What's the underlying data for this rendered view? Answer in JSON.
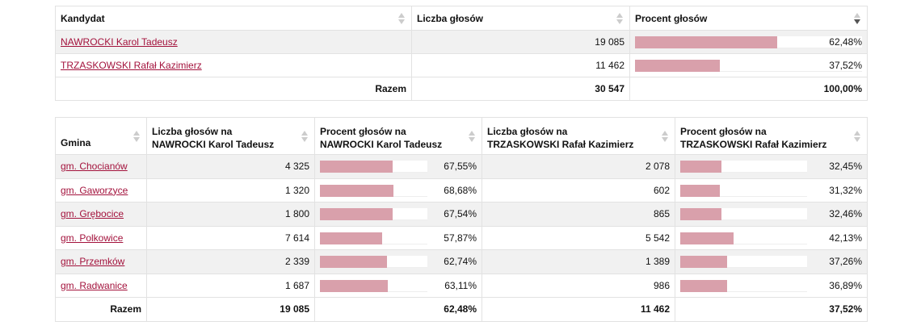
{
  "summary": {
    "headers": {
      "candidate": "Kandydat",
      "votes": "Liczba głosów",
      "percent": "Procent głosów"
    },
    "rows": [
      {
        "name": "NAWROCKI Karol Tadeusz",
        "votes": "19 085",
        "percent": "62,48%",
        "percent_value": 62.48
      },
      {
        "name": "TRZASKOWSKI Rafał Kazimierz",
        "votes": "11 462",
        "percent": "37,52%",
        "percent_value": 37.52
      }
    ],
    "total": {
      "label": "Razem",
      "votes": "30 547",
      "percent": "100,00%"
    }
  },
  "communes": {
    "headers": {
      "commune": "Gmina",
      "votes_a_line1": "Liczba głosów na",
      "votes_a_line2": "NAWROCKI Karol Tadeusz",
      "pct_a_line1": "Procent głosów na",
      "pct_a_line2": "NAWROCKI Karol Tadeusz",
      "votes_b_line1": "Liczba głosów na",
      "votes_b_line2": "TRZASKOWSKI Rafał Kazimierz",
      "pct_b_line1": "Procent głosów na",
      "pct_b_line2": "TRZASKOWSKI Rafał Kazimierz"
    },
    "rows": [
      {
        "name": "gm. Chocianów",
        "votes_a": "4 325",
        "pct_a": "67,55%",
        "pct_a_value": 67.55,
        "votes_b": "2 078",
        "pct_b": "32,45%",
        "pct_b_value": 32.45
      },
      {
        "name": "gm. Gaworzyce",
        "votes_a": "1 320",
        "pct_a": "68,68%",
        "pct_a_value": 68.68,
        "votes_b": "602",
        "pct_b": "31,32%",
        "pct_b_value": 31.32
      },
      {
        "name": "gm. Grębocice",
        "votes_a": "1 800",
        "pct_a": "67,54%",
        "pct_a_value": 67.54,
        "votes_b": "865",
        "pct_b": "32,46%",
        "pct_b_value": 32.46
      },
      {
        "name": "gm. Polkowice",
        "votes_a": "7 614",
        "pct_a": "57,87%",
        "pct_a_value": 57.87,
        "votes_b": "5 542",
        "pct_b": "42,13%",
        "pct_b_value": 42.13
      },
      {
        "name": "gm. Przemków",
        "votes_a": "2 339",
        "pct_a": "62,74%",
        "pct_a_value": 62.74,
        "votes_b": "1 389",
        "pct_b": "37,26%",
        "pct_b_value": 37.26
      },
      {
        "name": "gm. Radwanice",
        "votes_a": "1 687",
        "pct_a": "63,11%",
        "pct_a_value": 63.11,
        "votes_b": "986",
        "pct_b": "36,89%",
        "pct_b_value": 36.89
      }
    ],
    "total": {
      "label": "Razem",
      "votes_a": "19 085",
      "pct_a": "62,48%",
      "votes_b": "11 462",
      "pct_b": "37,52%"
    }
  },
  "colors": {
    "bar_fill": "#d9a0ab",
    "link": "#a3123c",
    "stripe": "#f1f1f1"
  },
  "icons": {
    "sort": "sort-arrows-icon",
    "sorted_desc": "sort-desc-icon"
  }
}
